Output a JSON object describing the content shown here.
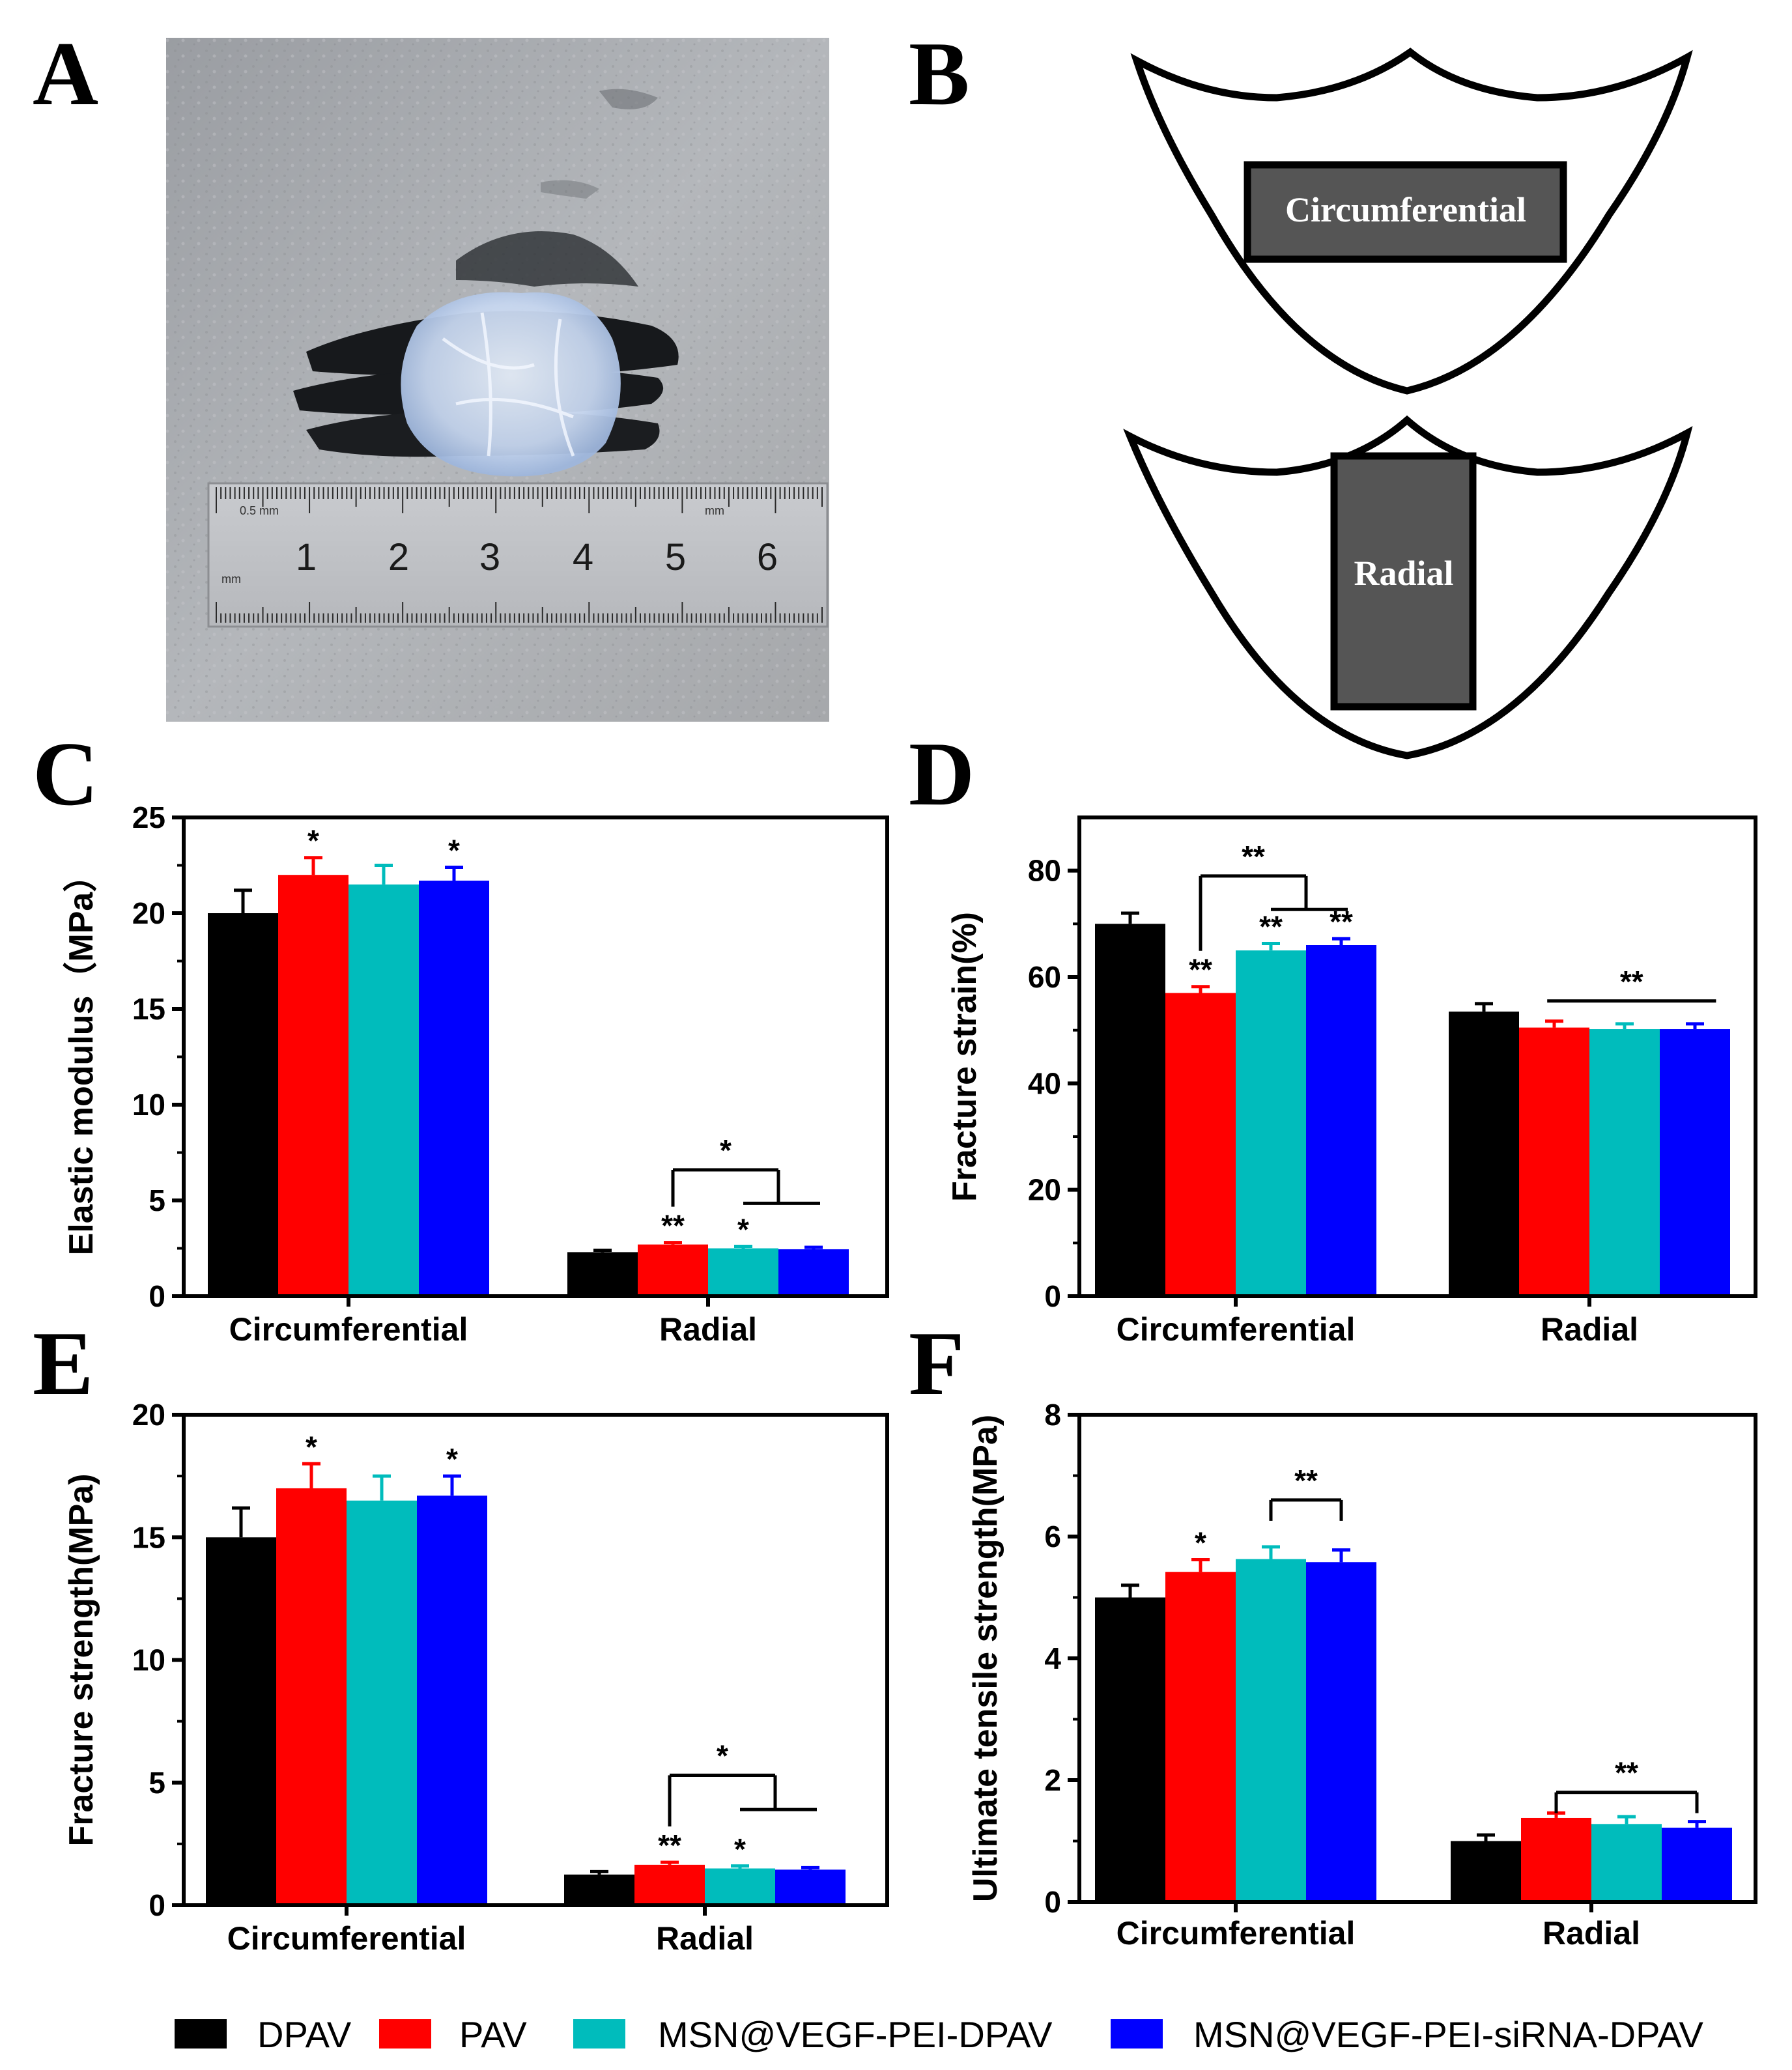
{
  "panels": {
    "A": "A",
    "B": "B",
    "C": "C",
    "D": "D",
    "E": "E",
    "F": "F"
  },
  "photo": {
    "ruler_numbers": [
      "1",
      "2",
      "3",
      "4",
      "5",
      "6"
    ],
    "ruler_unit_top": "0.5 mm",
    "ruler_unit_mid": "mm",
    "ruler_unit_bottom": "mm",
    "highlight_number_color": "#b01515"
  },
  "schematic": {
    "circumferential_label": "Circumferential",
    "radial_label": "Radial"
  },
  "colors": {
    "DPAV": "#000000",
    "PAV": "#ff0000",
    "MSN@VEGF-PEI-DPAV": "#00bcbc",
    "MSN@VEGF-PEI-siRNA-DPAV": "#0000ff"
  },
  "legend": [
    "DPAV",
    "PAV",
    "MSN@VEGF-PEI-DPAV",
    "MSN@VEGF-PEI-siRNA-DPAV"
  ],
  "chart_data": [
    {
      "panel": "C",
      "type": "bar",
      "ylabel": "Elastic modulus（MPa）",
      "ylim": [
        0,
        25
      ],
      "yticks": [
        "0",
        "5",
        "10",
        "15",
        "20",
        "25"
      ],
      "categories": [
        "Circumferential",
        "Radial"
      ],
      "series": [
        {
          "name": "DPAV",
          "values": [
            20.0,
            2.3
          ],
          "errors": [
            1.2,
            0.1
          ]
        },
        {
          "name": "PAV",
          "values": [
            22.0,
            2.7
          ],
          "errors": [
            0.9,
            0.1
          ]
        },
        {
          "name": "MSN@VEGF-PEI-DPAV",
          "values": [
            21.5,
            2.5
          ],
          "errors": [
            1.0,
            0.1
          ]
        },
        {
          "name": "MSN@VEGF-PEI-siRNA-DPAV",
          "values": [
            21.7,
            2.45
          ],
          "errors": [
            0.7,
            0.1
          ]
        }
      ],
      "significance": [
        {
          "category": 0,
          "series": 1,
          "label": "*"
        },
        {
          "category": 0,
          "series": 3,
          "label": "*"
        },
        {
          "category": 1,
          "series": 1,
          "label": "**"
        },
        {
          "category": 1,
          "series": 2,
          "label": "*"
        }
      ],
      "brackets": [
        {
          "category": 1,
          "type": "one_vs_pair",
          "from": 1,
          "to": [
            2,
            3
          ],
          "label": "*",
          "y": 6.6
        }
      ]
    },
    {
      "panel": "D",
      "type": "bar",
      "ylabel": "Fracture strain(%)",
      "ylim": [
        0,
        90
      ],
      "yticks": [
        "0",
        "20",
        "40",
        "60",
        "80"
      ],
      "categories": [
        "Circumferential",
        "Radial"
      ],
      "series": [
        {
          "name": "DPAV",
          "values": [
            70.0,
            53.5
          ],
          "errors": [
            2.0,
            1.5
          ]
        },
        {
          "name": "PAV",
          "values": [
            57.0,
            50.5
          ],
          "errors": [
            1.2,
            1.2
          ]
        },
        {
          "name": "MSN@VEGF-PEI-DPAV",
          "values": [
            65.0,
            50.2
          ],
          "errors": [
            1.3,
            1.0
          ]
        },
        {
          "name": "MSN@VEGF-PEI-siRNA-DPAV",
          "values": [
            66.0,
            50.2
          ],
          "errors": [
            1.2,
            1.0
          ]
        }
      ],
      "significance": [
        {
          "category": 0,
          "series": 1,
          "label": "**"
        },
        {
          "category": 0,
          "series": 2,
          "label": "**"
        },
        {
          "category": 0,
          "series": 3,
          "label": "**"
        }
      ],
      "brackets": [
        {
          "category": 0,
          "type": "one_vs_pair",
          "from": 1,
          "to": [
            2,
            3
          ],
          "label": "**",
          "y": 79
        },
        {
          "category": 1,
          "type": "line",
          "from": 1,
          "to": 3,
          "label": "**",
          "y": 55.5
        }
      ]
    },
    {
      "panel": "E",
      "type": "bar",
      "ylabel": "Fracture strength(MPa)",
      "ylim": [
        0,
        20
      ],
      "yticks": [
        "0",
        "5",
        "10",
        "15",
        "20"
      ],
      "categories": [
        "Circumferential",
        "Radial"
      ],
      "series": [
        {
          "name": "DPAV",
          "values": [
            15.0,
            1.25
          ],
          "errors": [
            1.2,
            0.12
          ]
        },
        {
          "name": "PAV",
          "values": [
            17.0,
            1.65
          ],
          "errors": [
            1.0,
            0.1
          ]
        },
        {
          "name": "MSN@VEGF-PEI-DPAV",
          "values": [
            16.5,
            1.5
          ],
          "errors": [
            1.0,
            0.1
          ]
        },
        {
          "name": "MSN@VEGF-PEI-siRNA-DPAV",
          "values": [
            16.7,
            1.45
          ],
          "errors": [
            0.8,
            0.08
          ]
        }
      ],
      "significance": [
        {
          "category": 0,
          "series": 1,
          "label": "*"
        },
        {
          "category": 0,
          "series": 3,
          "label": "*"
        },
        {
          "category": 1,
          "series": 1,
          "label": "**"
        },
        {
          "category": 1,
          "series": 2,
          "label": "*"
        }
      ],
      "brackets": [
        {
          "category": 1,
          "type": "one_vs_pair",
          "from": 1,
          "to": [
            2,
            3
          ],
          "label": "*",
          "y": 5.3
        }
      ]
    },
    {
      "panel": "F",
      "type": "bar",
      "ylabel": "Ultimate tensile strength(MPa)",
      "ylim": [
        0,
        8
      ],
      "yticks": [
        "0",
        "2",
        "4",
        "6",
        "8"
      ],
      "categories": [
        "Circumferential",
        "Radial"
      ],
      "series": [
        {
          "name": "DPAV",
          "values": [
            5.0,
            1.0
          ],
          "errors": [
            0.2,
            0.1
          ]
        },
        {
          "name": "PAV",
          "values": [
            5.42,
            1.38
          ],
          "errors": [
            0.2,
            0.08
          ]
        },
        {
          "name": "MSN@VEGF-PEI-DPAV",
          "values": [
            5.63,
            1.28
          ],
          "errors": [
            0.2,
            0.12
          ]
        },
        {
          "name": "MSN@VEGF-PEI-siRNA-DPAV",
          "values": [
            5.58,
            1.22
          ],
          "errors": [
            0.2,
            0.1
          ]
        }
      ],
      "significance": [
        {
          "category": 0,
          "series": 1,
          "label": "*"
        }
      ],
      "brackets": [
        {
          "category": 0,
          "type": "line_drop",
          "from": 2,
          "to": 3,
          "label": "**",
          "y": 6.6
        },
        {
          "category": 1,
          "type": "line_drop",
          "from": 1,
          "to": 3,
          "label": "**",
          "y": 1.8
        }
      ]
    }
  ]
}
